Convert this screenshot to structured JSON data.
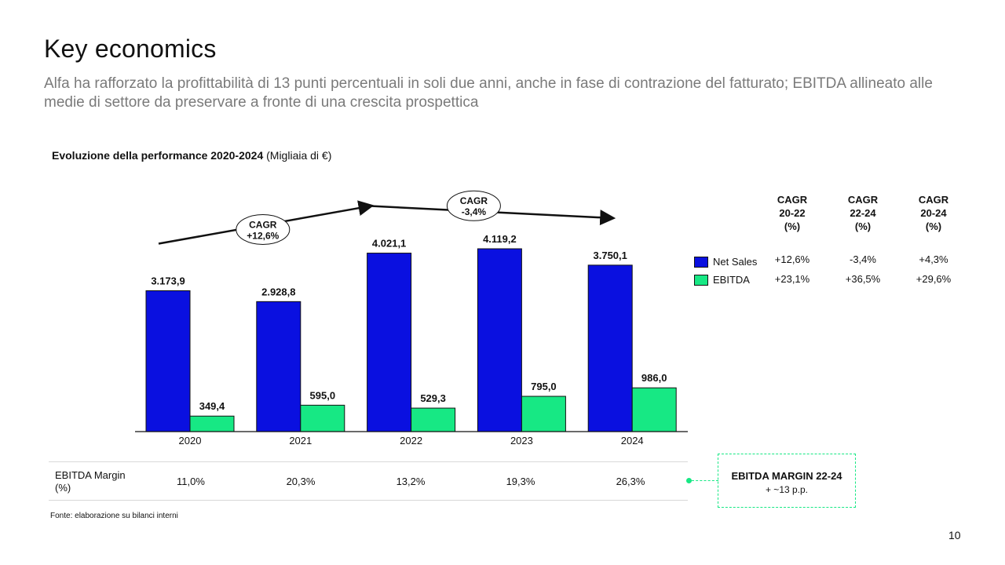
{
  "title": "Key economics",
  "subtitle": "Alfa ha rafforzato la profittabilità di 13 punti percentuali in soli due anni, anche in fase di contrazione del fatturato; EBITDA allineato alle medie di settore da preservare a fronte di una crescita prospettica",
  "chart_heading": {
    "bold": "Evoluzione della performance 2020-2024",
    "normal": " (Migliaia di €)"
  },
  "chart_data": {
    "type": "bar",
    "categories": [
      "2020",
      "2021",
      "2022",
      "2023",
      "2024"
    ],
    "series": [
      {
        "name": "Net Sales",
        "values": [
          3173.9,
          2928.8,
          4021.1,
          4119.2,
          3750.1
        ],
        "labels": [
          "3.173,9",
          "2.928,8",
          "4.021,1",
          "4.119,2",
          "3.750,1"
        ],
        "color": "#0a10e0"
      },
      {
        "name": "EBITDA",
        "values": [
          349.4,
          595.0,
          529.3,
          795.0,
          986.0
        ],
        "labels": [
          "349,4",
          "595,0",
          "529,3",
          "795,0",
          "986,0"
        ],
        "color": "#17e884"
      }
    ],
    "ylim": [
      0,
      4119.2
    ],
    "annotations": [
      {
        "text_line1": "CAGR",
        "text_line2": "+12,6%",
        "from_category": "2020",
        "to_category": "2022"
      },
      {
        "text_line1": "CAGR",
        "text_line2": "-3,4%",
        "from_category": "2022",
        "to_category": "2024"
      }
    ]
  },
  "legend": [
    {
      "label": "Net Sales",
      "color": "#0a10e0"
    },
    {
      "label": "EBITDA",
      "color": "#17e884"
    }
  ],
  "cagr_table": {
    "headers": [
      "CAGR\n20-22\n(%)",
      "CAGR\n22-24\n(%)",
      "CAGR\n20-24\n(%)"
    ],
    "rows": [
      [
        "+12,6%",
        "-3,4%",
        "+4,3%"
      ],
      [
        "+23,1%",
        "+36,5%",
        "+29,6%"
      ]
    ]
  },
  "ebitda_margin": {
    "label": "EBITDA Margin\n(%)",
    "values": [
      "11,0%",
      "20,3%",
      "13,2%",
      "19,3%",
      "26,3%"
    ]
  },
  "margin_box": {
    "title": "EBITDA MARGIN 22-24",
    "subtitle": "+ ~13 p.p."
  },
  "source": "Fonte: elaborazione su bilanci interni",
  "page_number": "10"
}
